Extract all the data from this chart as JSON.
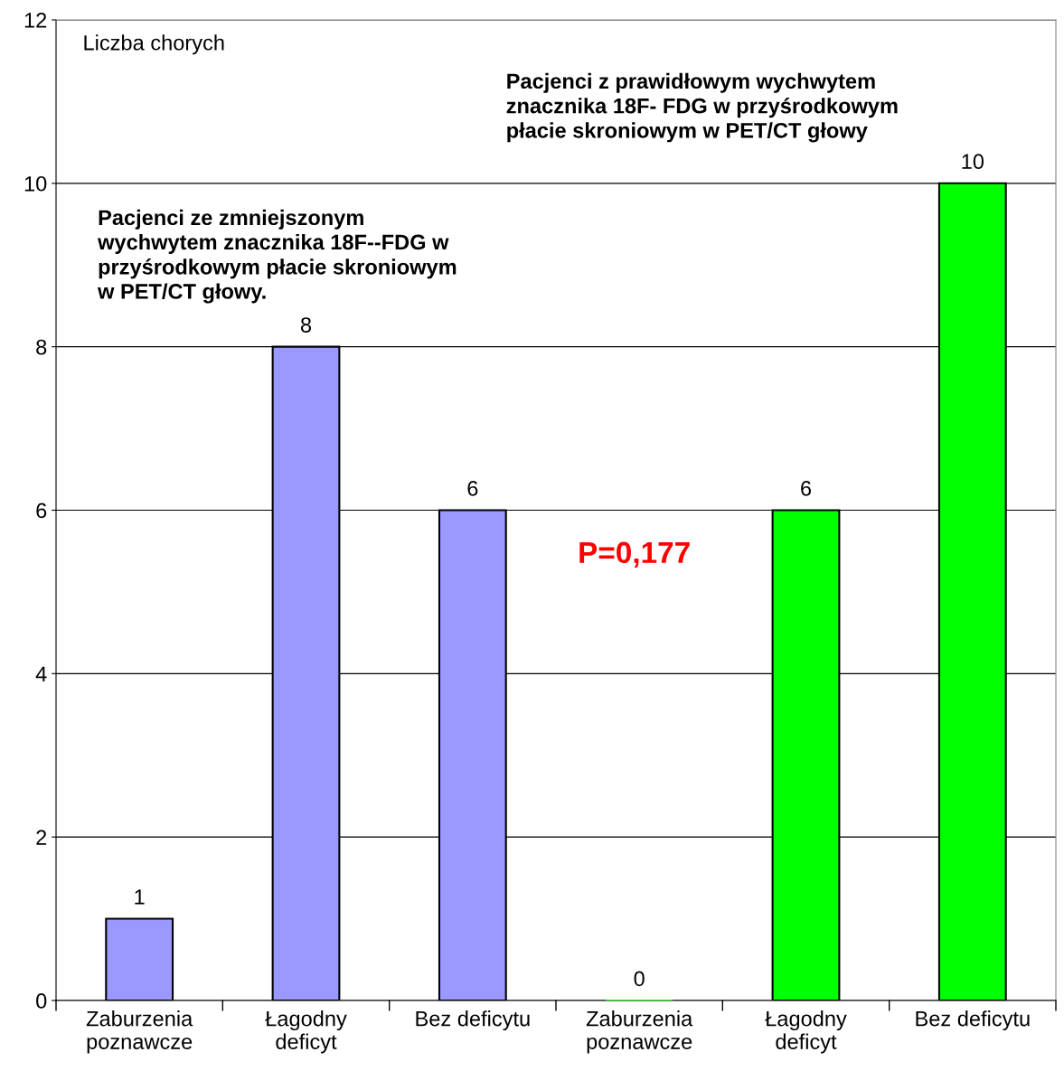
{
  "chart_data": {
    "type": "bar",
    "categories": [
      "Zaburzenia\npoznawcze",
      "Łagodny\ndeficyt",
      "Bez deficytu",
      "Zaburzenia\npoznawcze",
      "Łagodny\ndeficyt",
      "Bez deficytu"
    ],
    "values": [
      1,
      8,
      6,
      0,
      6,
      10
    ],
    "colors": [
      "#9999ff",
      "#9999ff",
      "#9999ff",
      "#00ff00",
      "#00ff00",
      "#00ff00"
    ],
    "ylim": [
      0,
      12
    ],
    "yticks": [
      0,
      2,
      4,
      6,
      8,
      10,
      12
    ],
    "grid": "y",
    "data_labels": true,
    "annotations": [
      "Liczba chorych",
      "Pacjenci ze zmniejszonym\nwychwytem znacznika 18F--FDG w\nprzyśrodkowym płacie skroniowym\nw PET/CT głowy.",
      "Pacjenci z prawidłowym wychwytem\nznacznika 18F- FDG w przyśrodkowym\npłacie skroniowym w PET/CT głowy",
      "P=0,177"
    ]
  }
}
